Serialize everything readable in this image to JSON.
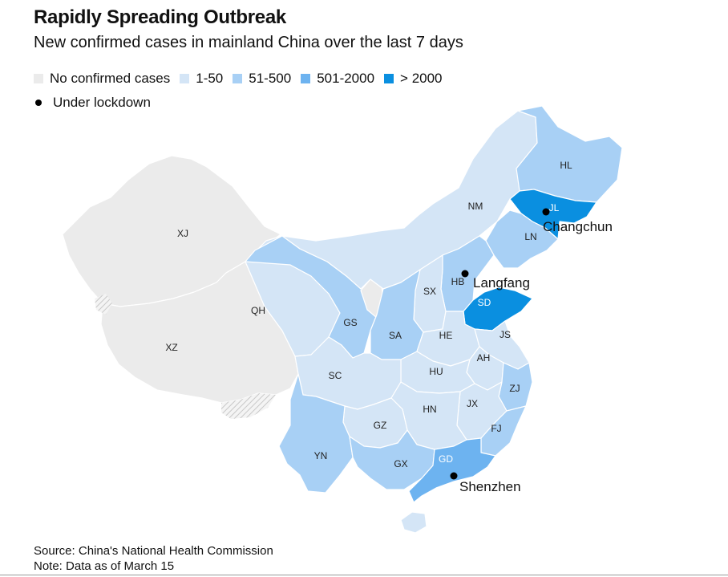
{
  "title": "Rapidly Spreading Outbreak",
  "subtitle": "New confirmed cases in mainland China over the last 7 days",
  "legend": [
    {
      "label": "No confirmed cases",
      "color": "#ebebeb"
    },
    {
      "label": "1-50",
      "color": "#d4e5f6"
    },
    {
      "label": "51-500",
      "color": "#a8d0f5"
    },
    {
      "label": "501-2000",
      "color": "#6db3f0"
    },
    {
      "label": "> 2000",
      "color": "#0a8fe0"
    }
  ],
  "lockdown_label": "Under lockdown",
  "provinces": {
    "xj": "XJ",
    "xz": "XZ",
    "qh": "QH",
    "gs": "GS",
    "nm": "NM",
    "hl": "HL",
    "jl": "JL",
    "ln": "LN",
    "hb": "HB",
    "sx": "SX",
    "sd": "SD",
    "sa": "SA",
    "he": "HE",
    "js": "JS",
    "ah": "AH",
    "sc": "SC",
    "hu": "HU",
    "zj": "ZJ",
    "jx": "JX",
    "hn": "HN",
    "gz": "GZ",
    "fj": "FJ",
    "yn": "YN",
    "gx": "GX",
    "gd": "GD"
  },
  "cities": {
    "changchun": "Changchun",
    "langfang": "Langfang",
    "shenzhen": "Shenzhen"
  },
  "source": "Source: China's National Health Commission",
  "note": "Note: Data as of March 15"
}
